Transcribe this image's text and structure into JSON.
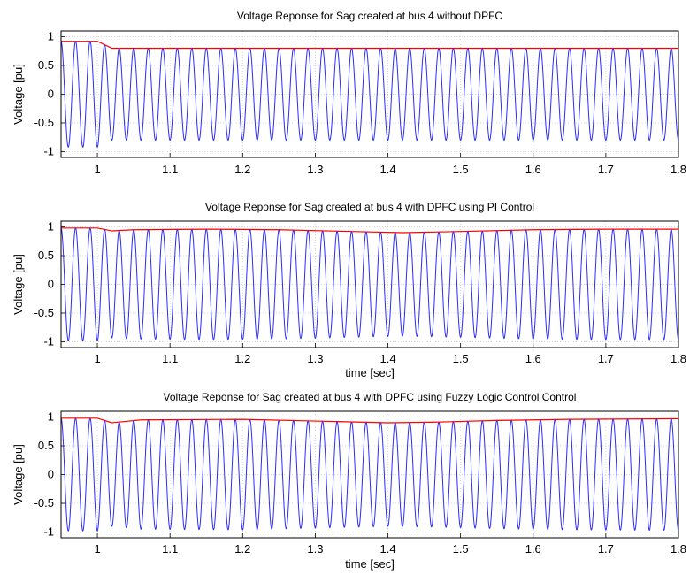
{
  "chart_data": [
    {
      "type": "line",
      "title": "Voltage Reponse for Sag created at bus 4 without DPFC",
      "xlabel": "",
      "ylabel": "Voltage [pu]",
      "xlim": [
        0.95,
        1.8
      ],
      "ylim": [
        -1.1,
        1.1
      ],
      "xticks": [
        "1",
        "1.1",
        "1.2",
        "1.3",
        "1.4",
        "1.5",
        "1.6",
        "1.7",
        "1.8"
      ],
      "yticks": [
        "-1",
        "-0.5",
        "0",
        "0.5",
        "1"
      ],
      "grid": true,
      "series": [
        {
          "color": "#2b2bff",
          "frequency_hz": 50,
          "values": [
            [
              0.95,
              0.92
            ],
            [
              1.0,
              0.92
            ],
            [
              1.02,
              0.8
            ],
            [
              1.8,
              0.8
            ]
          ]
        },
        {
          "color": "#ff0000",
          "values": [
            [
              0.95,
              0.92
            ],
            [
              1.0,
              0.92
            ],
            [
              1.02,
              0.8
            ],
            [
              1.8,
              0.8
            ]
          ]
        }
      ]
    },
    {
      "type": "line",
      "title": "Voltage Reponse for Sag created at bus 4 with DPFC using PI Control",
      "xlabel": "time [sec]",
      "ylabel": "Voltage [pu]",
      "xlim": [
        0.95,
        1.8
      ],
      "ylim": [
        -1.1,
        1.1
      ],
      "xticks": [
        "1",
        "1.1",
        "1.2",
        "1.3",
        "1.4",
        "1.5",
        "1.6",
        "1.7",
        "1.8"
      ],
      "yticks": [
        "-1",
        "-0.5",
        "0",
        "0.5",
        "1"
      ],
      "grid": true,
      "series": [
        {
          "color": "#2b2bff",
          "frequency_hz": 50,
          "values": [
            [
              0.95,
              0.98
            ],
            [
              1.0,
              0.98
            ],
            [
              1.02,
              0.93
            ],
            [
              1.05,
              0.95
            ],
            [
              1.15,
              0.96
            ],
            [
              1.25,
              0.95
            ],
            [
              1.35,
              0.92
            ],
            [
              1.42,
              0.9
            ],
            [
              1.5,
              0.92
            ],
            [
              1.6,
              0.95
            ],
            [
              1.7,
              0.96
            ],
            [
              1.8,
              0.96
            ]
          ]
        },
        {
          "color": "#ff0000",
          "values": [
            [
              0.95,
              0.98
            ],
            [
              1.0,
              0.98
            ],
            [
              1.02,
              0.93
            ],
            [
              1.05,
              0.95
            ],
            [
              1.15,
              0.96
            ],
            [
              1.25,
              0.95
            ],
            [
              1.35,
              0.92
            ],
            [
              1.42,
              0.9
            ],
            [
              1.5,
              0.92
            ],
            [
              1.6,
              0.95
            ],
            [
              1.7,
              0.96
            ],
            [
              1.8,
              0.96
            ]
          ]
        }
      ]
    },
    {
      "type": "line",
      "title": "Voltage Reponse for Sag created at bus 4 with DPFC using Fuzzy Logic Control Control",
      "xlabel": "time [sec]",
      "ylabel": "Voltage [pu]",
      "xlim": [
        0.95,
        1.8
      ],
      "ylim": [
        -1.1,
        1.1
      ],
      "xticks": [
        "1",
        "1.1",
        "1.2",
        "1.3",
        "1.4",
        "1.5",
        "1.6",
        "1.7",
        "1.8"
      ],
      "yticks": [
        "-1",
        "-0.5",
        "0",
        "0.5",
        "1"
      ],
      "grid": true,
      "series": [
        {
          "color": "#2b2bff",
          "frequency_hz": 50,
          "values": [
            [
              0.95,
              0.98
            ],
            [
              1.0,
              0.98
            ],
            [
              1.02,
              0.9
            ],
            [
              1.06,
              0.95
            ],
            [
              1.2,
              0.96
            ],
            [
              1.3,
              0.93
            ],
            [
              1.4,
              0.9
            ],
            [
              1.46,
              0.91
            ],
            [
              1.55,
              0.94
            ],
            [
              1.65,
              0.96
            ],
            [
              1.8,
              0.97
            ]
          ]
        },
        {
          "color": "#ff0000",
          "values": [
            [
              0.95,
              0.98
            ],
            [
              1.0,
              0.98
            ],
            [
              1.02,
              0.9
            ],
            [
              1.06,
              0.95
            ],
            [
              1.2,
              0.96
            ],
            [
              1.3,
              0.93
            ],
            [
              1.4,
              0.9
            ],
            [
              1.46,
              0.91
            ],
            [
              1.55,
              0.94
            ],
            [
              1.65,
              0.96
            ],
            [
              1.8,
              0.97
            ]
          ]
        }
      ]
    }
  ]
}
